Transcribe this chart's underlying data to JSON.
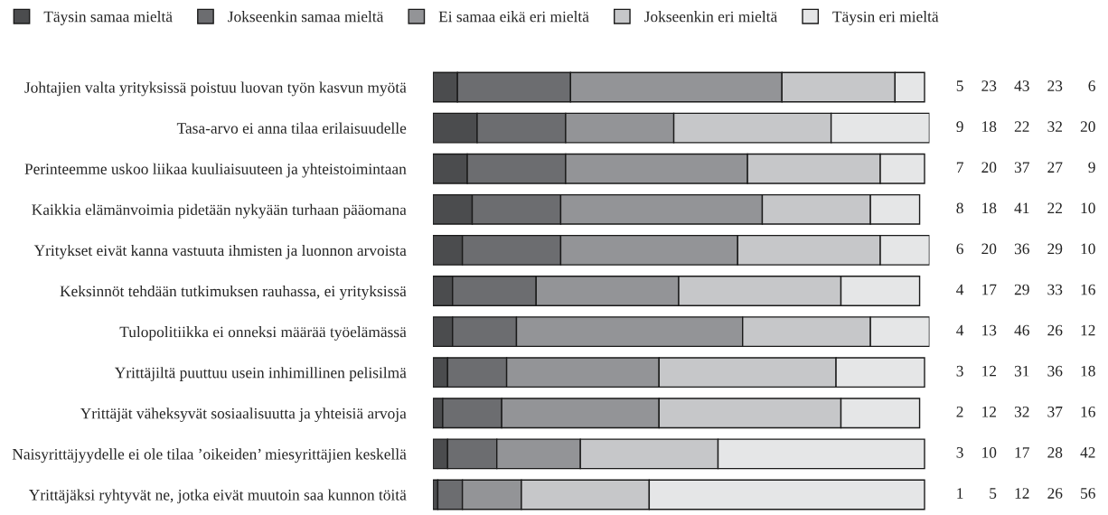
{
  "chart_data": {
    "type": "bar",
    "orientation": "horizontal",
    "stacked": true,
    "legend": "top",
    "tick_labels": "y",
    "data_labels": true,
    "categories": [
      "Johtajien valta yrityksissä poistuu luovan työn kasvun myötä",
      "Tasa-arvo ei anna tilaa erilaisuudelle",
      "Perinteemme uskoo liikaa kuuliaisuuteen ja yhteistoimintaan",
      "Kaikkia elämänvoimia pidetään nykyään turhaan pääomana",
      "Yritykset eivät kanna vastuuta ihmisten ja luonnon arvoista",
      "Keksinnöt tehdään tutkimuksen rauhassa, ei yrityksissä",
      "Tulopolitiikka ei onneksi määrää työelämässä",
      "Yrittäjiltä puuttuu usein inhimillinen pelisilmä",
      "Yrittäjät väheksyvät sosiaalisuutta ja yhteisiä arvoja",
      "Naisyrittäjyydelle ei ole tilaa ’oikeiden’ miesyrittäjien keskellä",
      "Yrittäjäksi ryhtyvät ne, jotka eivät muutoin saa kunnon töitä"
    ],
    "series": [
      {
        "name": "Täysin samaa mieltä",
        "color": "#4b4c4e",
        "values": [
          5,
          9,
          7,
          8,
          6,
          4,
          4,
          3,
          2,
          3,
          1
        ]
      },
      {
        "name": "Jokseenkin samaa mieltä",
        "color": "#6c6d70",
        "values": [
          23,
          18,
          20,
          18,
          20,
          17,
          13,
          12,
          12,
          10,
          5
        ]
      },
      {
        "name": "Ei samaa eikä eri mieltä",
        "color": "#939497",
        "values": [
          43,
          22,
          37,
          41,
          36,
          29,
          46,
          31,
          32,
          17,
          12
        ]
      },
      {
        "name": "Jokseenkin eri mieltä",
        "color": "#c6c7c9",
        "values": [
          23,
          32,
          27,
          22,
          29,
          33,
          26,
          36,
          37,
          28,
          26
        ]
      },
      {
        "name": "Täysin eri mieltä",
        "color": "#e5e6e7",
        "values": [
          6,
          20,
          9,
          10,
          10,
          16,
          12,
          18,
          16,
          42,
          56
        ]
      }
    ]
  }
}
